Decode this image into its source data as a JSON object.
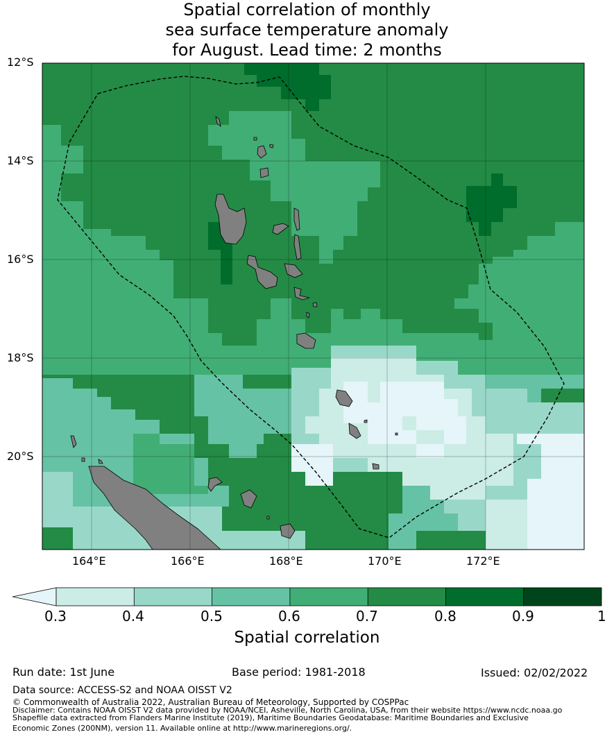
{
  "title": {
    "line1": "Spatial correlation of monthly",
    "line2": "sea surface temperature anomaly",
    "line3": "for August. Lead time: 2 months"
  },
  "map": {
    "lat_ticks": [
      "12°S",
      "14°S",
      "16°S",
      "18°S",
      "20°S"
    ],
    "lon_ticks": [
      "164°E",
      "166°E",
      "168°E",
      "170°E",
      "172°E"
    ],
    "extent": {
      "lon_min": 163.0,
      "lon_max": 174.0,
      "lat_min": -21.9,
      "lat_max": -12.0
    },
    "land_color": "#808080",
    "eez_style": "dashed black"
  },
  "colorbar": {
    "ticks": [
      "0.3",
      "0.4",
      "0.5",
      "0.6",
      "0.7",
      "0.8",
      "0.9",
      "1"
    ],
    "label": "Spatial correlation",
    "under_color": "#e5f5f9",
    "colors": [
      "#ccece6",
      "#99d8c9",
      "#66c2a4",
      "#41ae76",
      "#238b45",
      "#006d2c",
      "#00441b"
    ]
  },
  "footer": {
    "run_date": "Run date: 1st June",
    "base_period": "Base period: 1981-2018",
    "issued": "Issued: 02/02/2022",
    "data_source": "Data source: ACCESS-S2 and NOAA OISST V2",
    "copyright": "© Commonwealth of Australia 2022, Australian Bureau of Meteorology, Supported by COSPPac",
    "disclaimer1": "Disclaimer: Contains NOAA OISST V2 data provided by NOAA/NCEI, Asheville, North Carolina, USA, from their website https://www.ncdc.noaa.go",
    "disclaimer2": "Shapefile data extracted from Flanders Marine Institute (2019), Maritime Boundaries Geodatabase: Maritime Boundaries and Exclusive",
    "disclaimer3": "Economic Zones (200NM), version 11. Available online at http://www.marineregions.org/."
  }
}
